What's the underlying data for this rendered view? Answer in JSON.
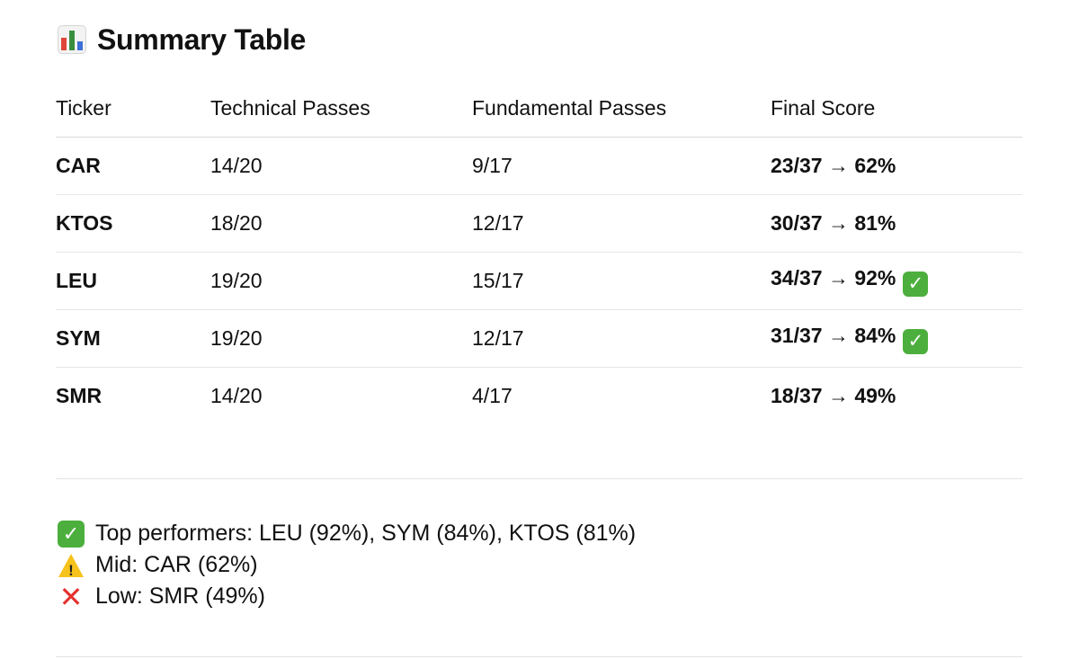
{
  "title": {
    "text": "Summary Table",
    "icon": "bar-chart-icon"
  },
  "table": {
    "headers": [
      "Ticker",
      "Technical Passes",
      "Fundamental Passes",
      "Final Score"
    ],
    "rows": [
      {
        "ticker": "CAR",
        "technical": "14/20",
        "fundamental": "9/17",
        "score": "23/37 → 62%",
        "badge": ""
      },
      {
        "ticker": "KTOS",
        "technical": "18/20",
        "fundamental": "12/17",
        "score": "30/37 → 81%",
        "badge": ""
      },
      {
        "ticker": "LEU",
        "technical": "19/20",
        "fundamental": "15/17",
        "score": "34/37 → 92%",
        "badge": "✓"
      },
      {
        "ticker": "SYM",
        "technical": "19/20",
        "fundamental": "12/17",
        "score": "31/37 → 84%",
        "badge": "✓"
      },
      {
        "ticker": "SMR",
        "technical": "14/20",
        "fundamental": "4/17",
        "score": "18/37 → 49%",
        "badge": ""
      }
    ]
  },
  "notes": [
    {
      "icon": "check-mark-icon",
      "glyph": "✓",
      "text": "Top performers: LEU (92%), SYM (84%), KTOS (81%)"
    },
    {
      "icon": "warning-icon",
      "glyph": "!",
      "text": "Mid: CAR (62%)"
    },
    {
      "icon": "cross-mark-icon",
      "glyph": "✕",
      "text": "Low: SMR (49%)"
    }
  ],
  "colors": {
    "check_green": "#4caf3d",
    "warning_yellow": "#f6c21c",
    "cross_red": "#e5312e",
    "chart_bars": [
      "#e0453a",
      "#3a8f3f",
      "#3d6fd6"
    ]
  }
}
